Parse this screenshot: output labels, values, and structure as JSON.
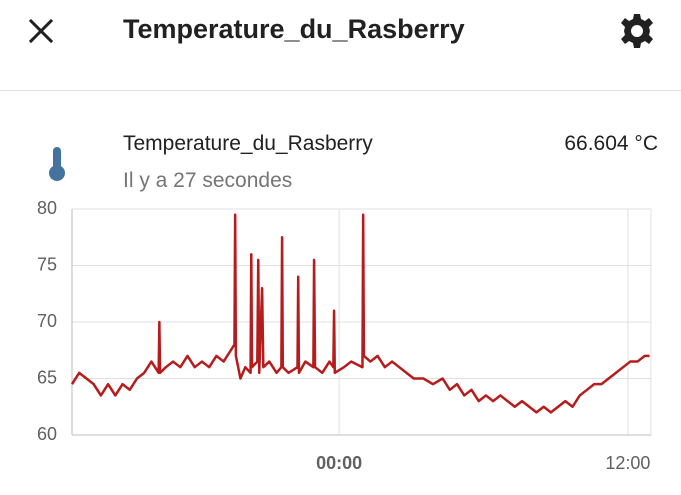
{
  "header": {
    "title": "Temperature_du_Rasberry"
  },
  "entity": {
    "name": "Temperature_du_Rasberry",
    "state": "66.604 °C",
    "last_changed": "Il y a 27 secondes"
  },
  "chart_data": {
    "type": "line",
    "x": [
      -11.1,
      -10.8,
      -10.5,
      -10.2,
      -9.9,
      -9.6,
      -9.3,
      -9.0,
      -8.7,
      -8.4,
      -8.1,
      -7.8,
      -7.5,
      -7.47,
      -7.44,
      -7.2,
      -6.9,
      -6.6,
      -6.3,
      -6.0,
      -5.7,
      -5.4,
      -5.1,
      -4.8,
      -4.5,
      -4.35,
      -4.32,
      -4.29,
      -4.1,
      -3.9,
      -3.68,
      -3.65,
      -3.62,
      -3.4,
      -3.36,
      -3.32,
      -3.2,
      -3.15,
      -2.9,
      -2.6,
      -2.4,
      -2.37,
      -2.34,
      -2.1,
      -1.73,
      -1.7,
      -1.67,
      -1.4,
      -1.07,
      -1.04,
      -1.0,
      -0.7,
      -0.4,
      -0.24,
      -0.21,
      -0.18,
      0.2,
      0.5,
      0.97,
      1.0,
      1.03,
      1.3,
      1.6,
      1.9,
      2.2,
      2.5,
      2.8,
      3.1,
      3.5,
      3.9,
      4.3,
      4.6,
      4.9,
      5.2,
      5.5,
      5.8,
      6.1,
      6.4,
      6.7,
      7.0,
      7.3,
      7.6,
      7.9,
      8.2,
      8.5,
      8.8,
      9.1,
      9.4,
      9.7,
      10.0,
      10.3,
      10.6,
      10.9,
      11.2,
      11.5,
      11.8,
      12.1,
      12.4,
      12.7,
      12.9
    ],
    "series": [
      {
        "name": "Temperature_du_Rasberry",
        "color": "#b71c1c",
        "values": [
          64.5,
          65.5,
          65,
          64.5,
          63.5,
          64.5,
          63.5,
          64.5,
          64,
          65,
          65.5,
          66.5,
          65.5,
          70,
          65.5,
          66,
          66.5,
          66,
          67,
          66,
          66.5,
          66,
          67,
          66.5,
          67.5,
          68,
          79.5,
          67,
          65,
          66,
          65.5,
          76,
          66,
          66.5,
          75.5,
          65.5,
          73,
          66,
          66.5,
          65.5,
          66,
          77.5,
          66,
          65.5,
          66,
          74,
          65.5,
          66.5,
          66,
          75.5,
          66,
          65.5,
          66.5,
          66,
          71,
          65.5,
          66,
          66.5,
          66,
          79.5,
          67,
          66.5,
          67,
          66,
          66.5,
          66,
          65.5,
          65,
          65,
          64.5,
          65,
          64,
          64.5,
          63.5,
          64,
          63,
          63.5,
          63,
          63.5,
          63,
          62.5,
          63,
          62.5,
          62,
          62.5,
          62,
          62.5,
          63,
          62.5,
          63.5,
          64,
          64.5,
          64.5,
          65,
          65.5,
          66,
          66.5,
          66.5,
          67,
          67
        ]
      }
    ],
    "xlim": [
      -11.1,
      12.96
    ],
    "ylim": [
      60,
      80
    ],
    "xticks": [
      {
        "value": 0,
        "label": "00:00"
      },
      {
        "value": 12,
        "label": "12:00"
      }
    ],
    "yticks": [
      60,
      65,
      70,
      75,
      80
    ],
    "grid": true
  }
}
